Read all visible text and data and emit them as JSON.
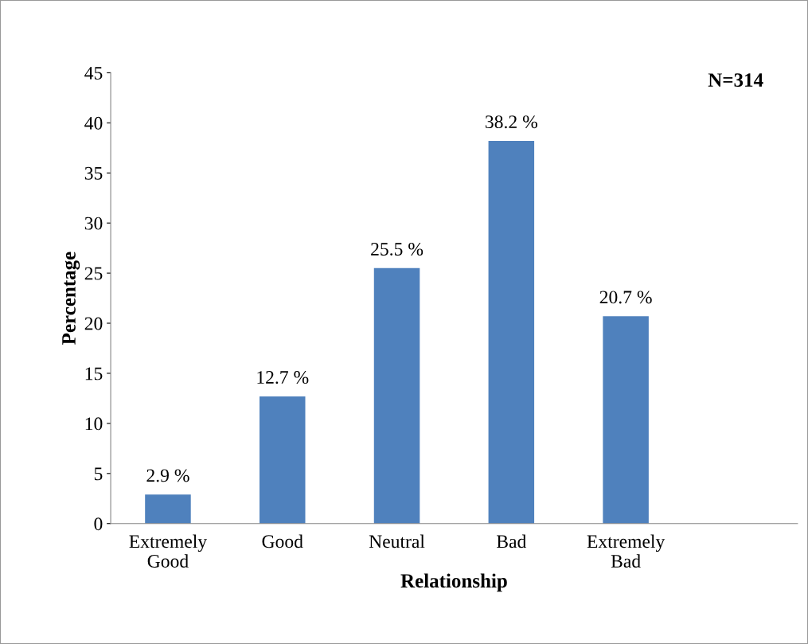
{
  "chart_data": {
    "type": "bar",
    "xlabel": "Relationship",
    "ylabel": "Percentage",
    "categories": [
      "Extremely\nGood",
      "Good",
      "Neutral",
      "Bad",
      "Extremely\nBad",
      null
    ],
    "values": [
      2.9,
      12.7,
      25.5,
      38.2,
      20.7,
      null
    ],
    "value_labels": [
      "2.9 %",
      "12.7 %",
      "25.5 %",
      "38.2 %",
      "20.7 %",
      null
    ],
    "color": "#4f81bd",
    "ylim": [
      0,
      45
    ],
    "yticks": [
      0,
      5,
      10,
      15,
      20,
      25,
      30,
      35,
      40,
      45
    ],
    "grid": false,
    "legend": false,
    "annotations": [
      "N=314"
    ]
  }
}
